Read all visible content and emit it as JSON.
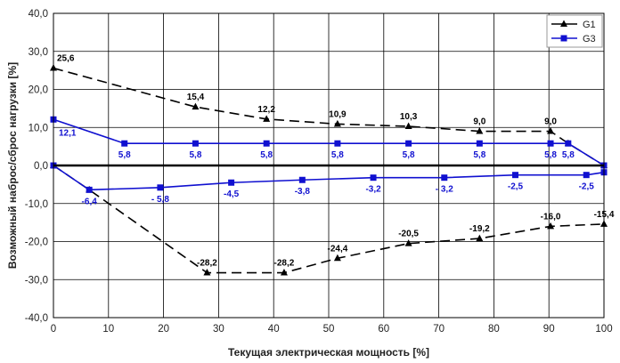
{
  "chart_data": {
    "type": "line",
    "xlabel": "Текущая электрическая мощность [%]",
    "ylabel": "Возможный наброс/сброс нагрузки [%]",
    "xlim": [
      0,
      100
    ],
    "ylim": [
      -40,
      40
    ],
    "x_ticks": [
      "0",
      "10",
      "20",
      "30",
      "40",
      "50",
      "60",
      "70",
      "80",
      "90",
      "100"
    ],
    "y_ticks": [
      "40,0",
      "30,0",
      "20,0",
      "10,0",
      "0,0",
      "-10,0",
      "-20,0",
      "-30,0",
      "-40,0"
    ],
    "grid": true,
    "legend_position": "top-right",
    "colors": {
      "G1": "#000000",
      "G3": "#1010d0"
    },
    "series": [
      {
        "name": "G1",
        "part": "upper",
        "style": "dashed",
        "marker": "triangle",
        "points": [
          {
            "x": 0,
            "y": 25.6,
            "label": "25,6"
          },
          {
            "x": 25.8,
            "y": 15.4,
            "label": "15,4"
          },
          {
            "x": 38.7,
            "y": 12.2,
            "label": "12,2"
          },
          {
            "x": 51.6,
            "y": 10.9,
            "label": "10,9"
          },
          {
            "x": 64.5,
            "y": 10.3,
            "label": "10,3"
          },
          {
            "x": 77.4,
            "y": 9.0,
            "label": "9,0"
          },
          {
            "x": 90.3,
            "y": 9.0,
            "label": "9,0"
          },
          {
            "x": 93.5,
            "y": 5.8,
            "label": ""
          },
          {
            "x": 100,
            "y": 0,
            "label": ""
          }
        ]
      },
      {
        "name": "G1",
        "part": "lower",
        "style": "dashed",
        "marker": "triangle",
        "points": [
          {
            "x": 0,
            "y": 0,
            "label": ""
          },
          {
            "x": 6.5,
            "y": -6.4,
            "label": ""
          },
          {
            "x": 27.9,
            "y": -28.2,
            "label": "-28,2"
          },
          {
            "x": 41.9,
            "y": -28.2,
            "label": "-28,2"
          },
          {
            "x": 51.6,
            "y": -24.4,
            "label": "-24,4"
          },
          {
            "x": 64.5,
            "y": -20.5,
            "label": "-20,5"
          },
          {
            "x": 77.4,
            "y": -19.2,
            "label": "-19,2"
          },
          {
            "x": 90.3,
            "y": -16.0,
            "label": "-16,0"
          },
          {
            "x": 100,
            "y": -15.4,
            "label": "-15,4"
          }
        ]
      },
      {
        "name": "G3",
        "part": "upper",
        "style": "solid",
        "marker": "square",
        "points": [
          {
            "x": 0,
            "y": 12.1,
            "label": "12,1"
          },
          {
            "x": 12.9,
            "y": 5.8,
            "label": "5,8"
          },
          {
            "x": 25.8,
            "y": 5.8,
            "label": "5,8"
          },
          {
            "x": 38.7,
            "y": 5.8,
            "label": "5,8"
          },
          {
            "x": 51.6,
            "y": 5.8,
            "label": "5,8"
          },
          {
            "x": 64.5,
            "y": 5.8,
            "label": "5,8"
          },
          {
            "x": 77.4,
            "y": 5.8,
            "label": "5,8"
          },
          {
            "x": 90.3,
            "y": 5.8,
            "label": "5,8"
          },
          {
            "x": 93.5,
            "y": 5.8,
            "label": "5,8"
          },
          {
            "x": 100,
            "y": 0,
            "label": ""
          }
        ]
      },
      {
        "name": "G3",
        "part": "lower",
        "style": "solid",
        "marker": "square",
        "points": [
          {
            "x": 0,
            "y": 0,
            "label": ""
          },
          {
            "x": 6.5,
            "y": -6.4,
            "label": "-6,4"
          },
          {
            "x": 19.4,
            "y": -5.8,
            "label": "- 5,8"
          },
          {
            "x": 32.3,
            "y": -4.5,
            "label": "-4,5"
          },
          {
            "x": 45.2,
            "y": -3.8,
            "label": "-3,8"
          },
          {
            "x": 58.1,
            "y": -3.2,
            "label": "-3,2"
          },
          {
            "x": 71.0,
            "y": -3.2,
            "label": "- 3,2"
          },
          {
            "x": 83.9,
            "y": -2.5,
            "label": "-2,5"
          },
          {
            "x": 96.8,
            "y": -2.5,
            "label": "-2,5"
          },
          {
            "x": 100,
            "y": -1.8,
            "label": ""
          }
        ]
      }
    ]
  }
}
